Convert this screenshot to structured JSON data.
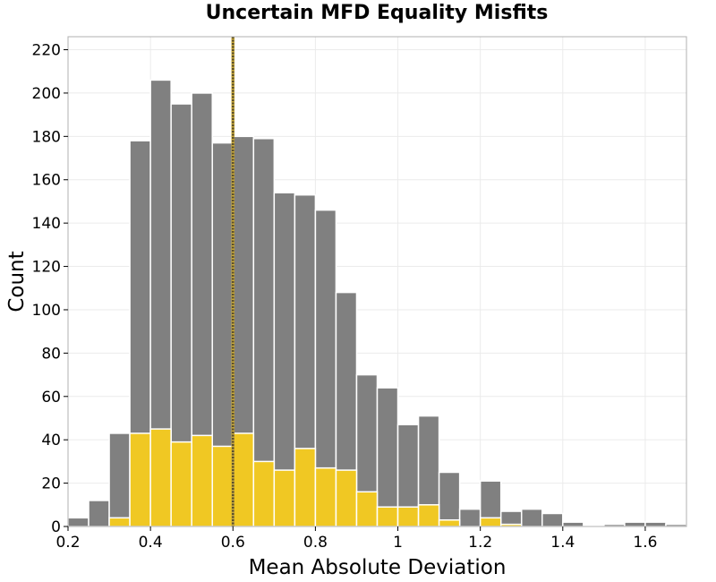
{
  "chart_data": {
    "type": "bar",
    "title": "Uncertain MFD Equality Misfits",
    "xlabel": "Mean Absolute Deviation",
    "ylabel": "Count",
    "xlim": [
      0.2,
      1.7
    ],
    "ylim": [
      0,
      226
    ],
    "bin_width": 0.05,
    "x_ticks": [
      0.2,
      0.4,
      0.6,
      0.8,
      1.0,
      1.2,
      1.4,
      1.6
    ],
    "x_tick_labels": [
      "0.2",
      "0.4",
      "0.6",
      "0.8",
      "1",
      "1.2",
      "1.4",
      "1.6"
    ],
    "y_ticks": [
      0,
      20,
      40,
      60,
      80,
      100,
      120,
      140,
      160,
      180,
      200,
      220
    ],
    "grid": true,
    "bin_starts": [
      0.2,
      0.25,
      0.3,
      0.35,
      0.4,
      0.45,
      0.5,
      0.55,
      0.6,
      0.65,
      0.7,
      0.75,
      0.8,
      0.85,
      0.9,
      0.95,
      1.0,
      1.05,
      1.1,
      1.15,
      1.2,
      1.25,
      1.3,
      1.35,
      1.4,
      1.45,
      1.5,
      1.55,
      1.6,
      1.65
    ],
    "series": [
      {
        "color": "#808080",
        "values": [
          4,
          12,
          43,
          178,
          206,
          195,
          200,
          177,
          180,
          179,
          154,
          153,
          146,
          108,
          70,
          64,
          47,
          51,
          25,
          8,
          21,
          7,
          8,
          6,
          2,
          0,
          1,
          2,
          2,
          1
        ]
      },
      {
        "color": "#f0c823",
        "values": [
          0,
          0,
          4,
          43,
          45,
          39,
          42,
          37,
          43,
          30,
          26,
          36,
          27,
          26,
          16,
          9,
          9,
          10,
          3,
          0,
          4,
          1,
          0,
          0,
          0,
          0,
          0,
          0,
          0,
          0
        ]
      }
    ],
    "reference_line": {
      "x": 0.6,
      "color": "#5a4f2e",
      "style": "dotted"
    }
  }
}
